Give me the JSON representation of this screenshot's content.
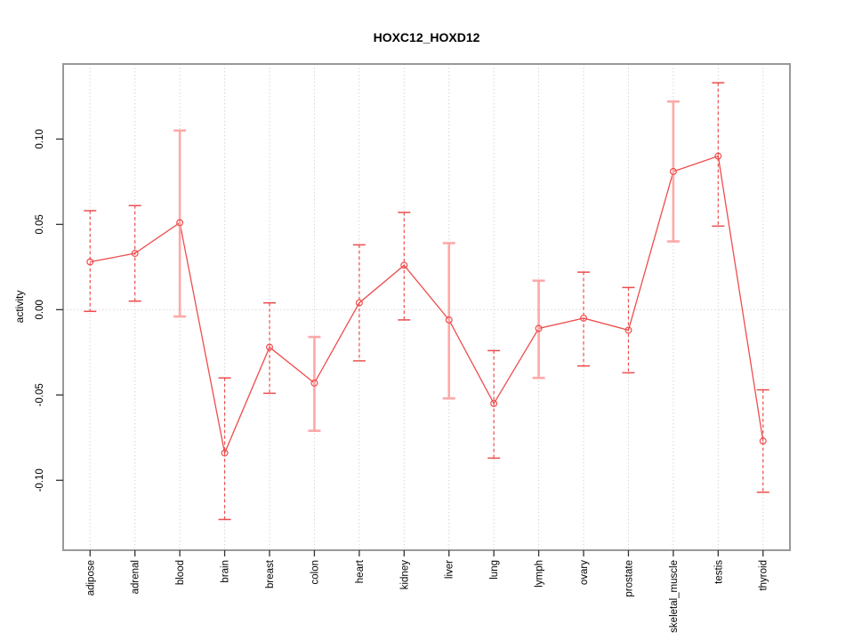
{
  "title": "HOXC12_HOXD12",
  "chart_data": {
    "type": "line",
    "title": "HOXC12_HOXD12",
    "xlabel": "",
    "ylabel": "activity",
    "categories": [
      "adipose",
      "adrenal",
      "blood",
      "brain",
      "breast",
      "colon",
      "heart",
      "kidney",
      "liver",
      "lung",
      "lymph",
      "ovary",
      "prostate",
      "skeletal_muscle",
      "testis",
      "thyroid"
    ],
    "series": [
      {
        "name": "activity",
        "values": [
          0.028,
          0.033,
          0.051,
          -0.084,
          -0.022,
          -0.043,
          0.004,
          0.026,
          -0.006,
          -0.055,
          -0.011,
          -0.005,
          -0.012,
          0.081,
          0.09,
          -0.077
        ],
        "ci_lower": [
          -0.001,
          0.005,
          -0.004,
          -0.123,
          -0.049,
          -0.071,
          -0.03,
          -0.006,
          -0.052,
          -0.087,
          -0.04,
          -0.033,
          -0.037,
          0.04,
          0.049,
          -0.107
        ],
        "ci_upper": [
          0.058,
          0.061,
          0.105,
          -0.04,
          0.004,
          -0.016,
          0.038,
          0.057,
          0.039,
          -0.024,
          0.017,
          0.022,
          0.013,
          0.122,
          0.133,
          -0.047
        ]
      }
    ],
    "error_bar_styles": [
      "dashed",
      "dashed",
      "solid",
      "dashed",
      "dashed",
      "solid",
      "dashed",
      "dashed",
      "solid",
      "dashed",
      "solid",
      "dashed",
      "dashed",
      "solid",
      "dashed",
      "dashed"
    ],
    "yticks": [
      -0.1,
      -0.05,
      0.0,
      0.05,
      0.1
    ],
    "ytick_labels": [
      "-0.10",
      "-0.05",
      "0.00",
      "0.05",
      "0.10"
    ],
    "ylim": [
      -0.141,
      0.144
    ],
    "marker": "open-circle",
    "legend": "none",
    "grid": {
      "vertical": "dotted",
      "zero_line": "dotted"
    },
    "colors": {
      "line": "#ee4d4d",
      "point": "#ee4d4d",
      "error_bar_dashed": "#ee4d4d",
      "error_bar_solid": "#ffa8a8",
      "grid": "#d6d6d6",
      "zero_line": "#dcd6d6",
      "border": "#999999",
      "tick": "#333333",
      "background": "#ffffff"
    }
  }
}
